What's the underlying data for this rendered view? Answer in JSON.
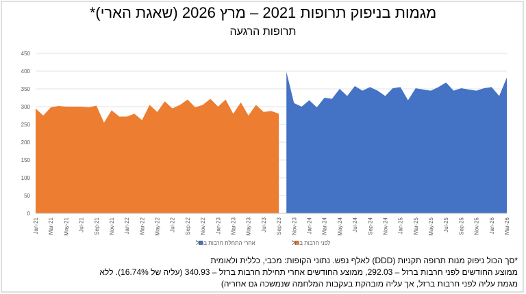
{
  "chart_data": {
    "type": "area",
    "title": "מגמות בניפוק תרופות 2021 – מרץ 2026 (שאגת הארי)*",
    "subtitle": "תרופות הרגעה",
    "categories": [
      "Jan-21",
      null,
      "Mar-21",
      null,
      "May-21",
      null,
      "Jul-21",
      null,
      "Sep-21",
      null,
      "Nov-21",
      null,
      "Jan-22",
      null,
      "Mar-22",
      null,
      "May-22",
      null,
      "Jul-22",
      null,
      "Sep-22",
      null,
      "Nov-22",
      null,
      "Jan-23",
      null,
      "Mar-23",
      null,
      "May-23",
      null,
      "Jul-23",
      null,
      "Sep-23",
      null,
      "Nov-23",
      null,
      "Jan-24",
      null,
      "Mar-24",
      null,
      "May-24",
      null,
      "Jul-24",
      null,
      "Sep-24",
      null,
      "Nov-24",
      null,
      "Jan-25",
      null,
      "Mar-25",
      null,
      "May-25",
      null,
      "Jul-25",
      null,
      "Sep-25",
      null,
      "Nov-25",
      null,
      "Jan-26",
      null,
      "Mar-26"
    ],
    "series": [
      {
        "name": "לפני חרבות ברזל",
        "color": "#ed7d31",
        "values": [
          295,
          275,
          298,
          302,
          300,
          300,
          300,
          298,
          303,
          255,
          290,
          272,
          272,
          280,
          262,
          305,
          285,
          315,
          295,
          305,
          320,
          298,
          305,
          322,
          300,
          320,
          280,
          312,
          275,
          305,
          285,
          288,
          280,
          null,
          null,
          null,
          null,
          null,
          null,
          null,
          null,
          null,
          null,
          null,
          null,
          null,
          null,
          null,
          null,
          null,
          null,
          null,
          null,
          null,
          null,
          null,
          null,
          null,
          null,
          null,
          null,
          null,
          null
        ]
      },
      {
        "name": "אחרי התחלת חרבות ברזל",
        "color": "#4472c4",
        "values": [
          null,
          null,
          null,
          null,
          null,
          null,
          null,
          null,
          null,
          null,
          null,
          null,
          null,
          null,
          null,
          null,
          null,
          null,
          null,
          null,
          null,
          null,
          null,
          null,
          null,
          null,
          null,
          null,
          null,
          null,
          null,
          null,
          null,
          398,
          310,
          300,
          318,
          298,
          325,
          322,
          350,
          330,
          358,
          345,
          355,
          345,
          330,
          352,
          355,
          318,
          352,
          348,
          345,
          355,
          368,
          345,
          352,
          348,
          345,
          352,
          355,
          330,
          382
        ]
      }
    ],
    "ylim": [
      0,
      450
    ],
    "yticks": [
      0,
      50,
      100,
      150,
      200,
      250,
      300,
      350,
      400,
      450
    ],
    "grid": true,
    "footnote": [
      "*סך הכול ניפוק מנות תרופה תקניות (DDD) לאלף נפש. נתוני הקופות: מכבי, כללית ולאומית",
      "ממוצע החודשים לפני חרבות ברזל – 292.03, ממוצע החודשים אחרי תחילת חרבות ברזל – 340.93 (עליה של 16.74%). ללא",
      "מגמת עליה לפני חרבות ברזל, אך עליה מובהקת בעקבות המלחמה שנמשכה גם אחריה)"
    ]
  }
}
